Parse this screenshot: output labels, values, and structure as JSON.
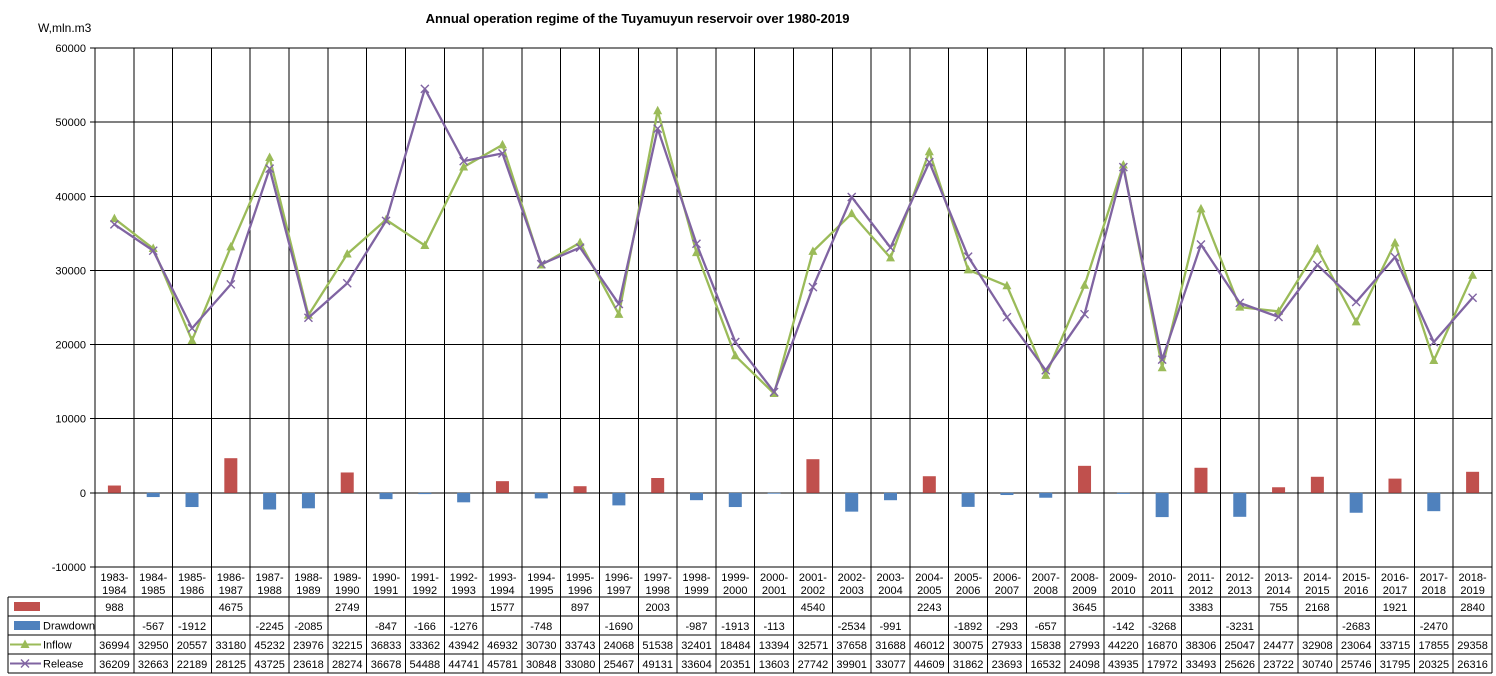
{
  "title": "Annual operation regime of the Tuyamuyun reservoir over 1980-2019",
  "y_axis_label": "W,mln.m3",
  "colors": {
    "background": "#FFFFFF",
    "grid": "#000000",
    "fill_bar": "#C0504D",
    "drawdown_bar": "#4F81BD",
    "inflow_line": "#9BBB59",
    "release_line": "#8064A2"
  },
  "chart_data": {
    "type": "combo-bar-line-with-data-table",
    "ylim": [
      -10000,
      60000
    ],
    "ytick_step": 10000,
    "grid": true,
    "legend_position": "data-table-left",
    "categories": [
      "1983-1984",
      "1984-1985",
      "1985-1986",
      "1986-1987",
      "1987-1988",
      "1988-1989",
      "1989-1990",
      "1990-1991",
      "1991-1992",
      "1992-1993",
      "1993-1994",
      "1994-1995",
      "1995-1996",
      "1996-1997",
      "1997-1998",
      "1998-1999",
      "1999-2000",
      "2000-2001",
      "2001-2002",
      "2002-2003",
      "2003-2004",
      "2004-2005",
      "2005-2006",
      "2006-2007",
      "2007-2008",
      "2008-2009",
      "2009-2010",
      "2010-2011",
      "2011-2012",
      "2012-2013",
      "2013-2014",
      "2014-2015",
      "2015-2016",
      "2016-2017",
      "2017-2018",
      "2018-2019"
    ],
    "series": [
      {
        "name": "",
        "type": "bar",
        "color": "#C0504D",
        "values": [
          988,
          null,
          null,
          4675,
          null,
          null,
          2749,
          null,
          null,
          null,
          1577,
          null,
          897,
          null,
          2003,
          null,
          null,
          null,
          4540,
          null,
          null,
          2243,
          null,
          null,
          null,
          3645,
          null,
          null,
          3383,
          null,
          755,
          2168,
          null,
          1921,
          null,
          2840
        ]
      },
      {
        "name": "Drawdown",
        "type": "bar",
        "color": "#4F81BD",
        "values": [
          null,
          -567,
          -1912,
          null,
          -2245,
          -2085,
          null,
          -847,
          -166,
          -1276,
          null,
          -748,
          null,
          -1690,
          null,
          -987,
          -1913,
          -113,
          null,
          -2534,
          -991,
          null,
          -1892,
          -293,
          -657,
          null,
          -142,
          -3268,
          null,
          -3231,
          null,
          null,
          -2683,
          null,
          -2470,
          null
        ]
      },
      {
        "name": "Inflow",
        "type": "line",
        "marker": "triangle",
        "color": "#9BBB59",
        "values": [
          36994,
          32950,
          20557,
          33180,
          45232,
          23976,
          32215,
          36833,
          33362,
          43942,
          46932,
          30730,
          33743,
          24068,
          51538,
          32401,
          18484,
          13394,
          32571,
          37658,
          31688,
          46012,
          30075,
          27933,
          15838,
          27993,
          44220,
          16870,
          38306,
          25047,
          24477,
          32908,
          23064,
          33715,
          17855,
          29358
        ]
      },
      {
        "name": "Release",
        "type": "line",
        "marker": "x",
        "color": "#8064A2",
        "values": [
          36209,
          32663,
          22189,
          28125,
          43725,
          23618,
          28274,
          36678,
          54488,
          44741,
          45781,
          30848,
          33080,
          25467,
          49131,
          33604,
          20351,
          13603,
          27742,
          39901,
          33077,
          44609,
          31862,
          23693,
          16532,
          24098,
          43935,
          17972,
          33493,
          25626,
          23722,
          30740,
          25746,
          31795,
          20325,
          26316
        ]
      }
    ]
  }
}
